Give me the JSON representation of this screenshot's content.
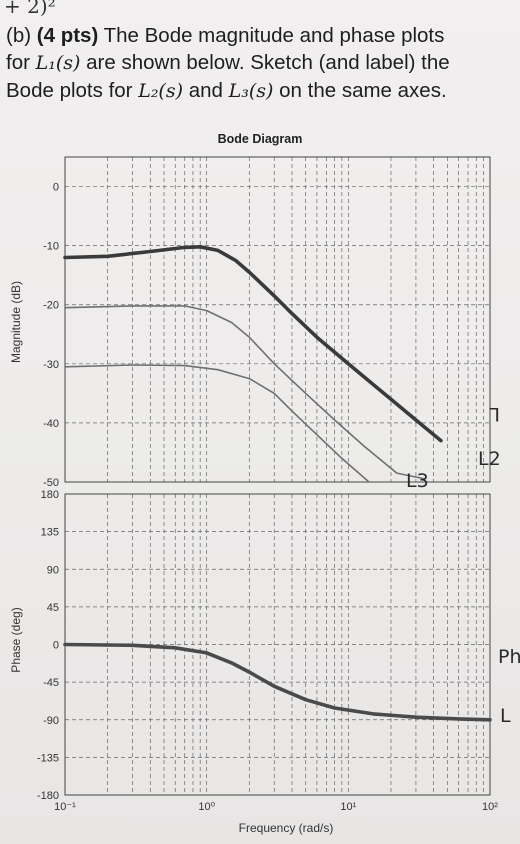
{
  "header": {
    "fragment": "+ 2)²"
  },
  "problem": {
    "part": "(b)",
    "points": "(4 pts)",
    "line1_rest": "The Bode magnitude and phase plots",
    "line2_pre": "for ",
    "L1": "L₁(s)",
    "line2_post": " are shown below. Sketch (and label) the",
    "line3_pre": "Bode plots for ",
    "L2": "L₂(s)",
    "line3_mid": " and ",
    "L3": "L₃(s)",
    "line3_post": " on the same axes."
  },
  "handwriting": {
    "l1": "L",
    "l2": "L2",
    "l3": "L3",
    "phase_label": "Ph",
    "phase_L": "L"
  },
  "chart_data": [
    {
      "type": "line",
      "title": "Bode Diagram",
      "ylabel": "Magnitude (dB)",
      "xscale": "log",
      "xlim": [
        0.1,
        100
      ],
      "ylim": [
        -50,
        5
      ],
      "yticks": [
        "0",
        "-10",
        "-20",
        "-30",
        "-40",
        "-50"
      ],
      "grid": true,
      "series": [
        {
          "name": "L1",
          "style": "thick-printed",
          "points": [
            [
              0.1,
              -12
            ],
            [
              0.2,
              -11.8
            ],
            [
              0.4,
              -11
            ],
            [
              0.7,
              -10.3
            ],
            [
              0.9,
              -10.2
            ],
            [
              1.2,
              -10.8
            ],
            [
              1.6,
              -12.5
            ],
            [
              2,
              -14.5
            ],
            [
              3,
              -18.5
            ],
            [
              4,
              -21.5
            ],
            [
              6,
              -25.5
            ],
            [
              10,
              -30
            ],
            [
              20,
              -36
            ],
            [
              30,
              -39.5
            ],
            [
              45,
              -43
            ]
          ]
        },
        {
          "name": "L2",
          "style": "hand-sketch",
          "points": [
            [
              0.1,
              -20.5
            ],
            [
              0.3,
              -20.2
            ],
            [
              0.7,
              -20.2
            ],
            [
              1,
              -21
            ],
            [
              1.5,
              -23
            ],
            [
              2,
              -25.5
            ],
            [
              3,
              -30
            ],
            [
              5,
              -35
            ],
            [
              8,
              -39.5
            ],
            [
              13,
              -44
            ],
            [
              22,
              -48.5
            ],
            [
              35,
              -49.5
            ]
          ]
        },
        {
          "name": "L3",
          "style": "hand-sketch",
          "points": [
            [
              0.1,
              -30.5
            ],
            [
              0.3,
              -30.2
            ],
            [
              0.7,
              -30.3
            ],
            [
              1.2,
              -31
            ],
            [
              2,
              -32.5
            ],
            [
              3,
              -35
            ],
            [
              4,
              -38
            ],
            [
              6,
              -42
            ],
            [
              9,
              -46
            ],
            [
              14,
              -50
            ]
          ]
        }
      ]
    },
    {
      "type": "line",
      "xlabel": "Frequency (rad/s)",
      "ylabel": "Phase (deg)",
      "xscale": "log",
      "xlim": [
        0.1,
        100
      ],
      "ylim": [
        -180,
        180
      ],
      "yticks": [
        "180",
        "135",
        "90",
        "45",
        "0",
        "-45",
        "-90",
        "-135",
        "-180"
      ],
      "xticks": [
        "10⁻¹",
        "10⁰",
        "10¹",
        "10²"
      ],
      "grid": true,
      "series": [
        {
          "name": "L1",
          "style": "thick-printed",
          "points": [
            [
              0.1,
              0
            ],
            [
              0.3,
              -1
            ],
            [
              0.6,
              -4
            ],
            [
              1,
              -10
            ],
            [
              1.5,
              -22
            ],
            [
              2,
              -33
            ],
            [
              3,
              -50
            ],
            [
              5,
              -66
            ],
            [
              8,
              -76
            ],
            [
              15,
              -83
            ],
            [
              30,
              -87
            ],
            [
              60,
              -89
            ],
            [
              100,
              -90
            ]
          ]
        }
      ]
    }
  ]
}
